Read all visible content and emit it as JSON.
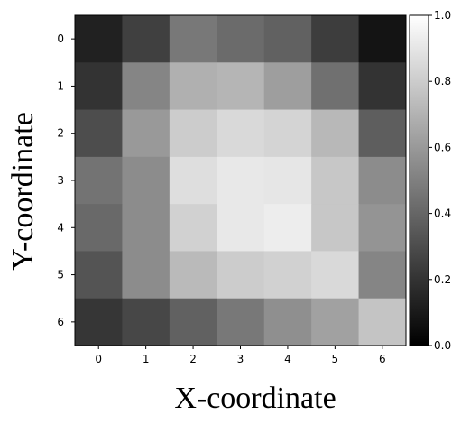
{
  "chart_data": {
    "type": "heatmap",
    "title": "",
    "xlabel": "X-coordinate",
    "ylabel": "Y-coordinate",
    "x_ticks": [
      "0",
      "1",
      "2",
      "3",
      "4",
      "5",
      "6"
    ],
    "y_ticks": [
      "0",
      "1",
      "2",
      "3",
      "4",
      "5",
      "6"
    ],
    "colormap": "gray",
    "vmin": 0.0,
    "vmax": 1.0,
    "colorbar_ticks": [
      "0.0",
      "0.2",
      "0.4",
      "0.6",
      "0.8",
      "1.0"
    ],
    "values": [
      [
        0.13,
        0.25,
        0.47,
        0.42,
        0.38,
        0.24,
        0.08
      ],
      [
        0.2,
        0.52,
        0.69,
        0.71,
        0.62,
        0.44,
        0.2
      ],
      [
        0.3,
        0.6,
        0.8,
        0.85,
        0.83,
        0.72,
        0.37
      ],
      [
        0.45,
        0.55,
        0.87,
        0.91,
        0.9,
        0.78,
        0.55
      ],
      [
        0.41,
        0.55,
        0.82,
        0.91,
        0.93,
        0.78,
        0.58
      ],
      [
        0.33,
        0.55,
        0.73,
        0.8,
        0.82,
        0.85,
        0.52
      ],
      [
        0.21,
        0.28,
        0.38,
        0.47,
        0.56,
        0.63,
        0.77
      ]
    ]
  }
}
